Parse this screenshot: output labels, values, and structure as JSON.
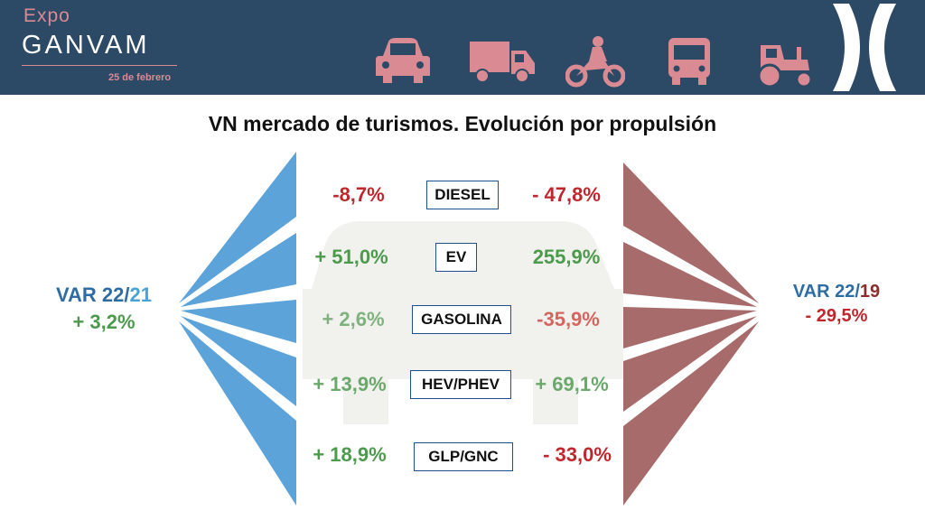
{
  "header": {
    "brand_top": "Expo",
    "brand_name": "GANVAM",
    "date": "25 de febrero",
    "icons": [
      "car-icon",
      "truck-icon",
      "motorcycle-icon",
      "bus-icon",
      "tractor-icon"
    ],
    "accent_color": "#d98a92",
    "background_color": "#2c4a66"
  },
  "title": "VN mercado de turismos. Evolución por propulsión",
  "left": {
    "label_prefix": "VAR 22/",
    "label_suffix": "21",
    "value": "+ 3,2%",
    "color": "#5ba3d9"
  },
  "right": {
    "label_prefix": "VAR 22/",
    "label_suffix": "19",
    "value": "- 29,5%",
    "color": "#a86b6b"
  },
  "rows": [
    {
      "name": "DIESEL",
      "var_21": "-8,7%",
      "var_19": "- 47,8%",
      "color_21": "#c0272d",
      "color_19": "#c0272d"
    },
    {
      "name": "EV",
      "var_21": "+ 51,0%",
      "var_19": "255,9%",
      "color_21": "#4c9a4c",
      "color_19": "#4c9a4c"
    },
    {
      "name": "GASOLINA",
      "var_21": "+ 2,6%",
      "var_19": "-35,9%",
      "color_21": "#7fb27f",
      "color_19": "#d4655f"
    },
    {
      "name": "HEV/PHEV",
      "var_21": "+ 13,9%",
      "var_19": "+ 69,1%",
      "color_21": "#6ba86b",
      "color_19": "#6ba86b"
    },
    {
      "name": "GLP/GNC",
      "var_21": "+ 18,9%",
      "var_19": "- 33,0%",
      "color_21": "#4c9a4c",
      "color_19": "#c0272d"
    }
  ]
}
